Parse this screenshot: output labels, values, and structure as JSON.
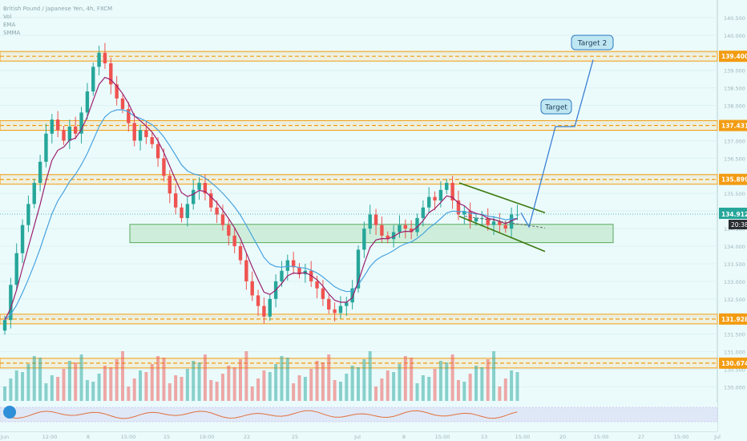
{
  "header": {
    "symbol": "British Pound / Japanese Yen, 4h, FXCM",
    "ind1": "Vol",
    "ind2": "EMA",
    "ind3": "SMMA"
  },
  "chart_data": {
    "type": "candlestick",
    "ylim": [
      129.6,
      141.0
    ],
    "y_ticks": [
      "140.500",
      "140.000",
      "139.500",
      "139.000",
      "138.500",
      "138.000",
      "137.500",
      "137.000",
      "136.500",
      "136.000",
      "135.500",
      "135.000",
      "134.500",
      "134.000",
      "133.500",
      "133.000",
      "132.500",
      "132.000",
      "131.500",
      "131.000",
      "130.500",
      "130.000"
    ],
    "x_tick_labels": [
      "Jun",
      "12:00",
      "8",
      "15:00",
      "15",
      "19:00",
      "22",
      "25",
      "Jul",
      "8",
      "15:00",
      "13",
      "15:00",
      "20",
      "15:00",
      "27",
      "15:00",
      "Jul"
    ],
    "price_levels": [
      {
        "label": "139.400",
        "value": 139.4,
        "color": "#f39c12"
      },
      {
        "label": "137.431",
        "value": 137.431,
        "color": "#f39c12"
      },
      {
        "label": "135.899",
        "value": 135.899,
        "color": "#f39c12"
      },
      {
        "label": "131.928",
        "value": 131.928,
        "color": "#f39c12"
      },
      {
        "label": "130.674",
        "value": 130.674,
        "color": "#f39c12"
      }
    ],
    "current_price": {
      "label": "134.912",
      "value": 134.912,
      "color": "#26a69a"
    },
    "countdown": "20:38",
    "support_zone": {
      "low": 134.1,
      "high": 134.62
    },
    "targets": [
      {
        "label": "Target",
        "price": 137.4
      },
      {
        "label": "Target  2",
        "price": 139.3
      }
    ],
    "closes": [
      131.9,
      132.9,
      133.8,
      134.6,
      135.2,
      135.8,
      136.4,
      137.2,
      137.6,
      137.3,
      137.0,
      137.4,
      137.2,
      137.8,
      138.4,
      139.1,
      139.5,
      139.2,
      138.6,
      138.2,
      137.9,
      137.5,
      137.0,
      137.3,
      137.1,
      136.9,
      136.5,
      136.0,
      135.5,
      135.1,
      134.8,
      135.2,
      135.6,
      135.8,
      135.5,
      135.1,
      134.9,
      134.6,
      134.3,
      134.0,
      133.6,
      133.0,
      132.6,
      132.3,
      132.0,
      132.5,
      133.0,
      133.3,
      133.6,
      133.4,
      133.2,
      133.3,
      133.0,
      132.8,
      132.5,
      132.2,
      132.1,
      132.3,
      132.4,
      132.8,
      133.9,
      134.5,
      134.9,
      134.6,
      134.3,
      134.2,
      134.4,
      134.6,
      134.5,
      134.4,
      134.8,
      135.1,
      135.4,
      135.3,
      135.6,
      135.8,
      135.3,
      134.9,
      135.0,
      134.7,
      134.8,
      134.8,
      134.6,
      134.7,
      134.6,
      134.5,
      134.9,
      134.9
    ]
  }
}
